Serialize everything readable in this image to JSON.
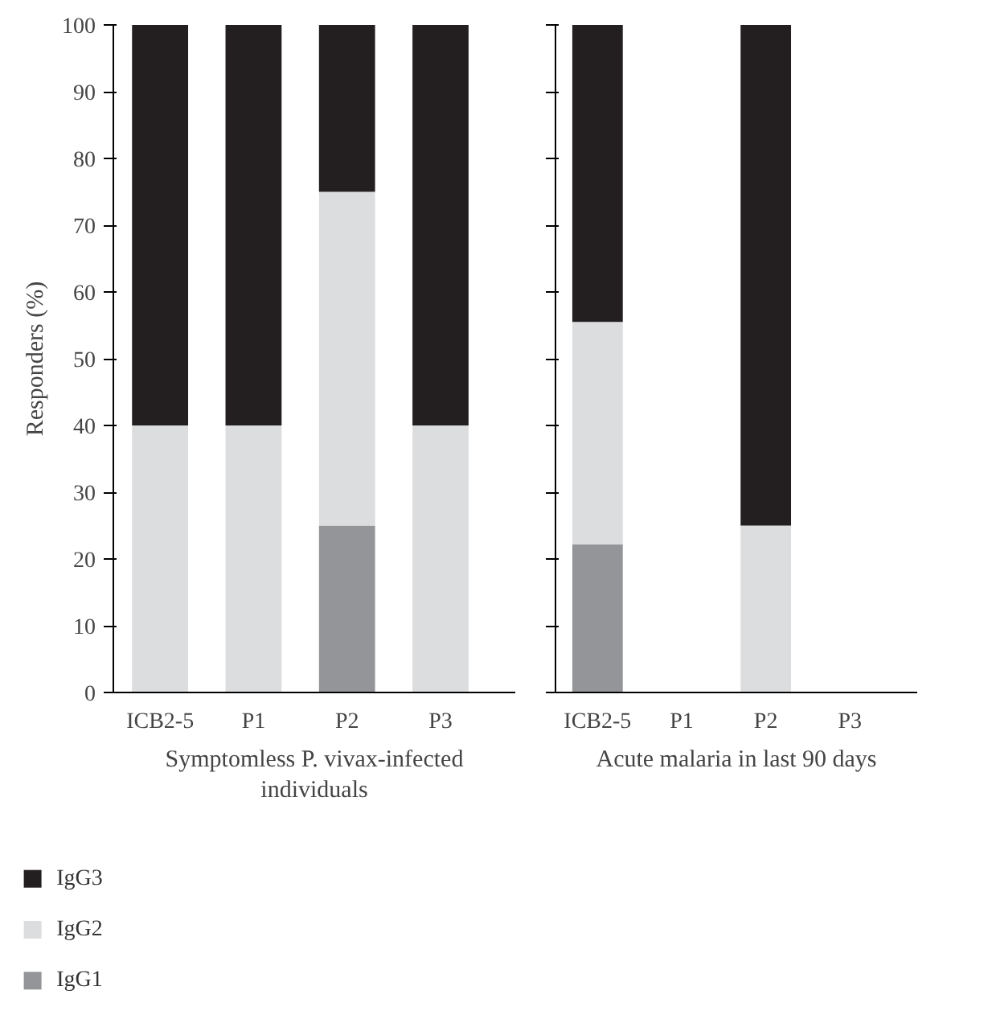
{
  "chart_data": [
    {
      "type": "bar",
      "stacked": true,
      "categories": [
        "ICB2-5",
        "P1",
        "P2",
        "P3"
      ],
      "xlabel": "Symptomless P. vivax-infected individuals",
      "ylabel": "Responders (%)",
      "ylim": [
        0,
        100
      ],
      "yticks": [
        0,
        10,
        20,
        30,
        40,
        50,
        60,
        70,
        80,
        90,
        100
      ],
      "legend": "bottom",
      "grid": false,
      "series": [
        {
          "name": "IgG1",
          "color": "#939598",
          "values": [
            0,
            0,
            25,
            0
          ]
        },
        {
          "name": "IgG2",
          "color": "#dcdddf",
          "values": [
            40,
            40,
            50,
            40
          ]
        },
        {
          "name": "IgG3",
          "color": "#231f20",
          "values": [
            60,
            60,
            25,
            60
          ]
        }
      ]
    },
    {
      "type": "bar",
      "stacked": true,
      "categories": [
        "ICB2-5",
        "P1",
        "P2",
        "P3"
      ],
      "xlabel": "Acute malaria in last 90 days",
      "ylim": [
        0,
        100
      ],
      "yticks": [
        0,
        10,
        20,
        30,
        40,
        50,
        60,
        70,
        80,
        90,
        100
      ],
      "tick_labels": "x",
      "grid": false,
      "series": [
        {
          "color": "#939598",
          "values": [
            22.2,
            null,
            0,
            null
          ]
        },
        {
          "color": "#dcdddf",
          "values": [
            33.3,
            null,
            25,
            null
          ]
        },
        {
          "color": "#231f20",
          "values": [
            44.5,
            null,
            75,
            null
          ]
        }
      ]
    }
  ]
}
